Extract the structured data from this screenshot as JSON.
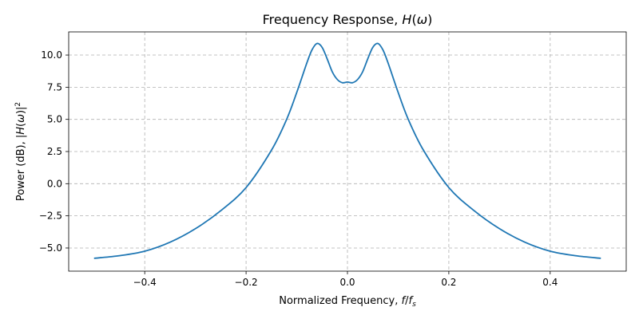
{
  "chart_data": {
    "type": "line",
    "title": "Frequency Response, H(ω)",
    "xlabel": "Normalized Frequency, f/f",
    "xlabel_sub": "s",
    "ylabel": "Power (dB), |H(ω)|²",
    "xlim": [
      -0.55,
      0.55
    ],
    "ylim": [
      -6.8,
      11.8
    ],
    "xticks": [
      -0.4,
      -0.2,
      0.0,
      0.2,
      0.4
    ],
    "xtick_labels": [
      "−0.4",
      "−0.2",
      "0.0",
      "0.2",
      "0.4"
    ],
    "yticks": [
      -5.0,
      -2.5,
      0.0,
      2.5,
      5.0,
      7.5,
      10.0
    ],
    "ytick_labels": [
      "−5.0",
      "−2.5",
      "0.0",
      "2.5",
      "5.0",
      "7.5",
      "10.0"
    ],
    "grid": true,
    "series": [
      {
        "color": "#1f77b4",
        "x": [
          -0.5,
          -0.45,
          -0.4,
          -0.35,
          -0.3,
          -0.25,
          -0.2,
          -0.15,
          -0.12,
          -0.1,
          -0.08,
          -0.07,
          -0.06,
          -0.05,
          -0.04,
          -0.03,
          -0.02,
          -0.01,
          0.0,
          0.01,
          0.02,
          0.03,
          0.04,
          0.05,
          0.06,
          0.07,
          0.08,
          0.1,
          0.12,
          0.15,
          0.2,
          0.25,
          0.3,
          0.35,
          0.4,
          0.45,
          0.5
        ],
        "y": [
          -5.8,
          -5.6,
          -5.25,
          -4.55,
          -3.5,
          -2.1,
          -0.3,
          2.6,
          5.0,
          7.1,
          9.4,
          10.4,
          10.9,
          10.6,
          9.7,
          8.7,
          8.1,
          7.85,
          7.9,
          7.85,
          8.1,
          8.7,
          9.7,
          10.6,
          10.9,
          10.4,
          9.4,
          7.1,
          5.0,
          2.6,
          -0.3,
          -2.1,
          -3.5,
          -4.55,
          -5.25,
          -5.6,
          -5.8
        ]
      }
    ]
  }
}
